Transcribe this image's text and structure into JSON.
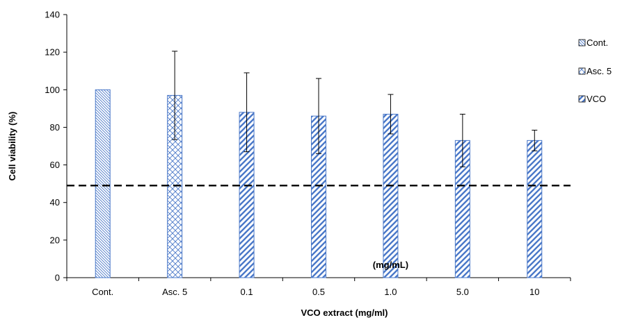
{
  "chart_data": {
    "type": "bar",
    "xlabel": "VCO extract (mg/ml)",
    "ylabel": "Cell viability  (%)",
    "ylim": [
      0,
      140
    ],
    "yticks": [
      0,
      20,
      40,
      60,
      80,
      100,
      120,
      140
    ],
    "categories": [
      "Cont.",
      "Asc. 5",
      "0.1",
      "0.5",
      "1.0",
      "5.0",
      "10"
    ],
    "values": [
      100,
      97,
      88,
      86,
      87,
      73,
      73
    ],
    "errors": [
      0,
      23.5,
      21,
      20,
      10.5,
      14,
      5.5
    ],
    "series_of_bar": [
      "Cont.",
      "Asc. 5",
      "VCO",
      "VCO",
      "VCO",
      "VCO",
      "VCO"
    ],
    "legend": [
      {
        "name": "Cont.",
        "pattern": "cont"
      },
      {
        "name": "Asc. 5",
        "pattern": "asc"
      },
      {
        "name": "VCO",
        "pattern": "vco"
      }
    ],
    "reference_line": {
      "y": 49,
      "style": "dashed"
    },
    "annotation": "(mg/mL)",
    "legend_position": "right",
    "grid": false,
    "colors": {
      "bar_stroke": "#4a78c8",
      "hatch": "#4a78c8",
      "axis": "#000000"
    }
  }
}
